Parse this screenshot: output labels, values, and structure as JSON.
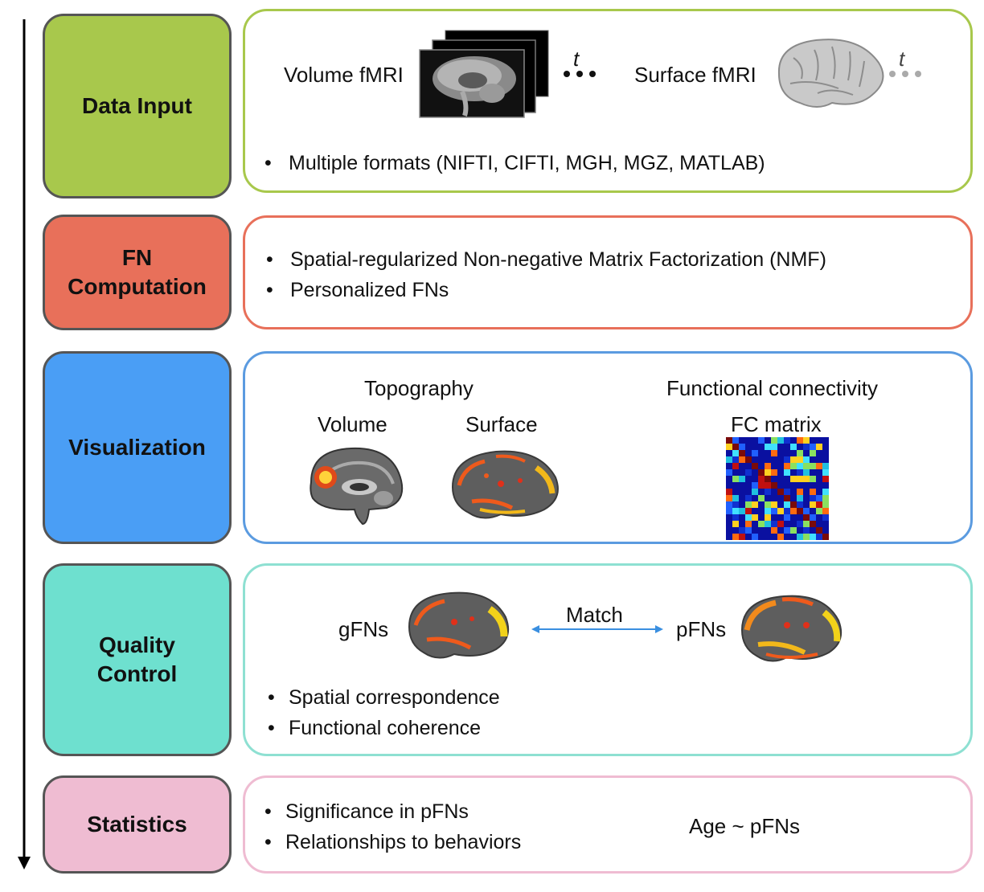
{
  "stages": [
    {
      "label": "Data Input",
      "color": "#a8c84c",
      "border": "#a8c84c"
    },
    {
      "label": "FN Computation",
      "color": "#e8705a",
      "border": "#e8705a"
    },
    {
      "label": "Visualization",
      "color": "#4a9ef5",
      "border": "#5b9be0"
    },
    {
      "label": "Quality Control",
      "color": "#6ee0cf",
      "border": "#8ee0d2"
    },
    {
      "label": "Statistics",
      "color": "#efbcd2",
      "border": "#efbcd2"
    }
  ],
  "data_input": {
    "volume_label": "Volume fMRI",
    "surface_label": "Surface fMRI",
    "time_symbol": "t",
    "bullets": [
      "Multiple formats (NIFTI, CIFTI, MGH, MGZ, MATLAB)"
    ]
  },
  "fn_computation": {
    "bullets": [
      "Spatial-regularized Non-negative Matrix Factorization (NMF)",
      "Personalized FNs"
    ]
  },
  "visualization": {
    "topography_label": "Topography",
    "fc_label": "Functional connectivity",
    "volume_label": "Volume",
    "surface_label": "Surface",
    "fc_matrix_label": "FC matrix"
  },
  "quality_control": {
    "gfns_label": "gFNs",
    "pfns_label": "pFNs",
    "match_label": "Match",
    "bullets": [
      "Spatial correspondence",
      "Functional coherence"
    ]
  },
  "statistics": {
    "bullets": [
      "Significance in pFNs",
      "Relationships to behaviors"
    ],
    "model_label": "Age ~ pFNs"
  },
  "bullet_symbol": "•"
}
